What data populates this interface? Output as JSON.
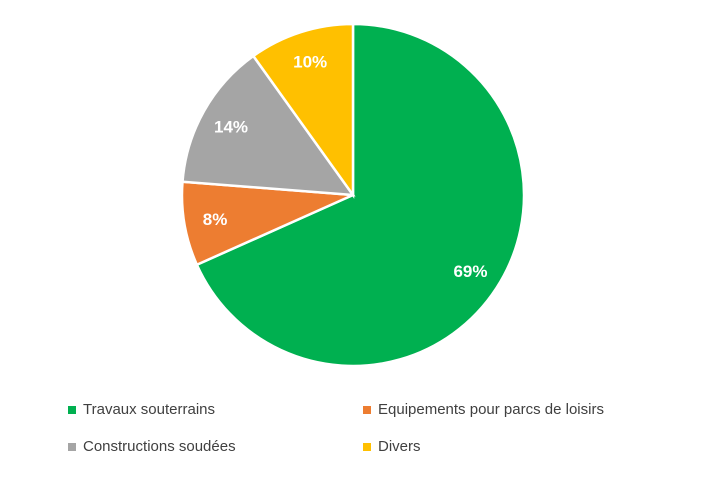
{
  "chart_data": {
    "type": "pie",
    "title": "",
    "categories": [
      "Travaux souterrains",
      "Equipements pour parcs de loisirs",
      "Constructions soudées",
      "Divers"
    ],
    "values": [
      69,
      8,
      14,
      10
    ],
    "labels": [
      "69%",
      "8%",
      "14%",
      "10%"
    ],
    "colors": [
      "#00B050",
      "#ED7D31",
      "#A5A5A5",
      "#FFC000"
    ],
    "start": "top",
    "direction": "clockwise",
    "legend_position": "bottom"
  }
}
